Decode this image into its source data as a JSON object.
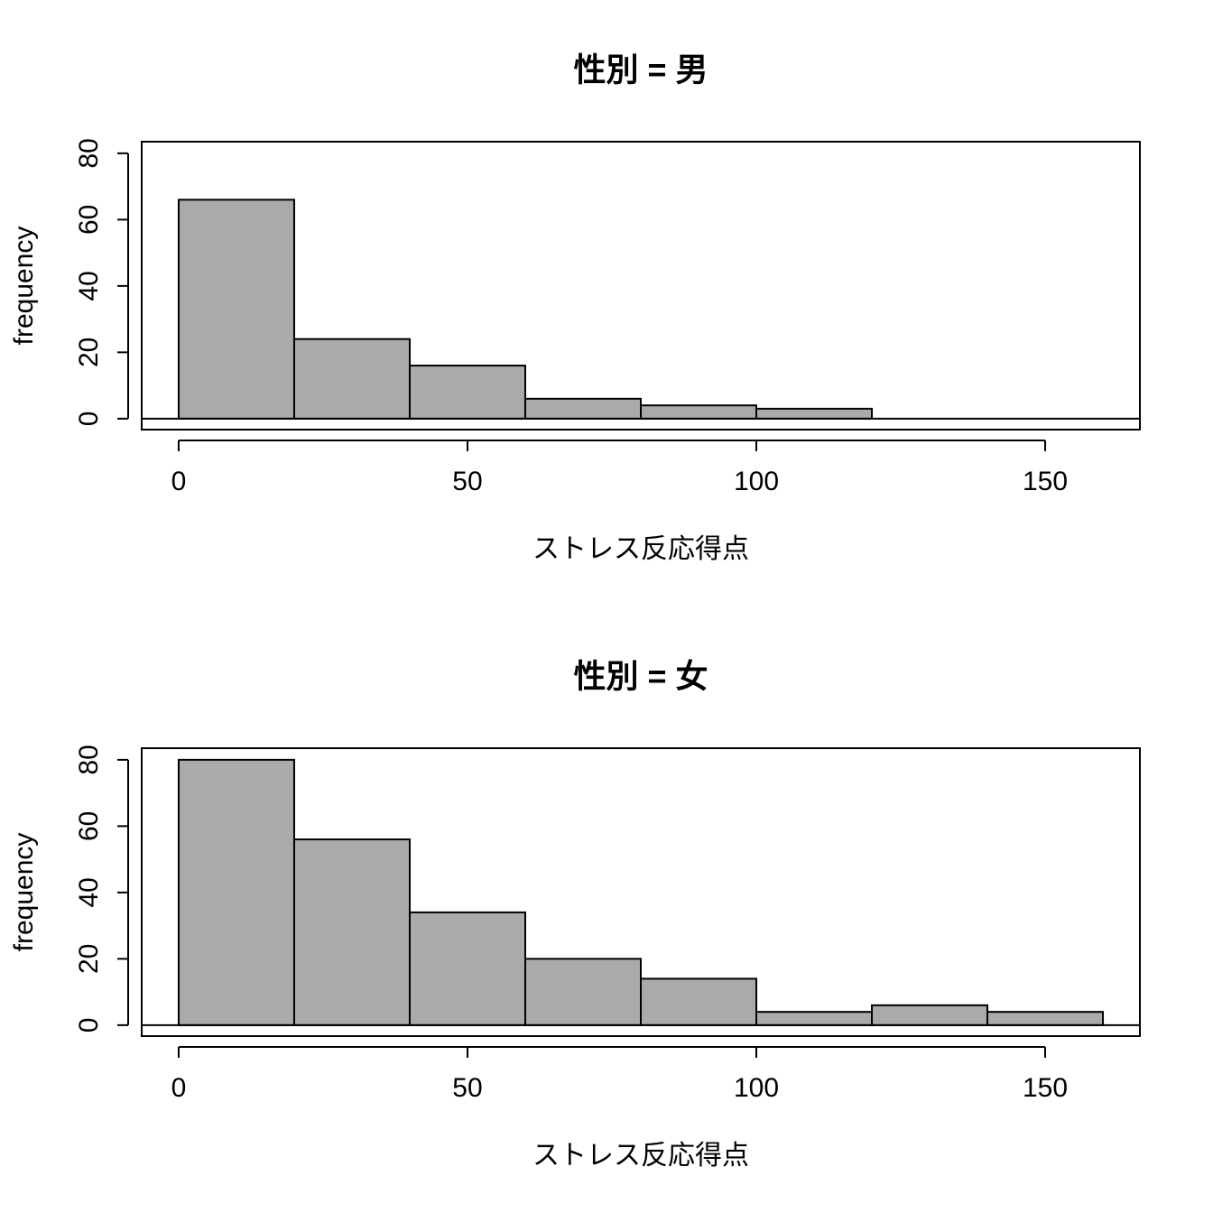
{
  "chart_data": [
    {
      "type": "histogram",
      "title": "性別 = 男",
      "x_label": "ストレス反応得点",
      "y_label": "frequency",
      "bins": [
        0,
        20,
        40,
        60,
        80,
        100,
        120,
        140,
        160
      ],
      "counts": [
        66,
        24,
        16,
        6,
        4,
        3,
        0,
        0
      ],
      "color": "#aaaaaa",
      "xlim": [
        -6.4,
        166.4
      ],
      "ylim": [
        -3.3,
        83.5
      ],
      "xticks": [
        0,
        50,
        100,
        150
      ],
      "yticks": [
        0,
        20,
        40,
        60,
        80
      ]
    },
    {
      "type": "histogram",
      "title": "性別 = 女",
      "x_label": "ストレス反応得点",
      "y_label": "frequency",
      "bins": [
        0,
        20,
        40,
        60,
        80,
        100,
        120,
        140,
        160
      ],
      "counts": [
        80,
        56,
        34,
        20,
        14,
        4,
        6,
        4
      ],
      "color": "#aaaaaa",
      "xlim": [
        -6.4,
        166.4
      ],
      "ylim": [
        -3.3,
        83.5
      ],
      "xticks": [
        0,
        50,
        100,
        150
      ],
      "yticks": [
        0,
        20,
        40,
        60,
        80
      ]
    }
  ]
}
